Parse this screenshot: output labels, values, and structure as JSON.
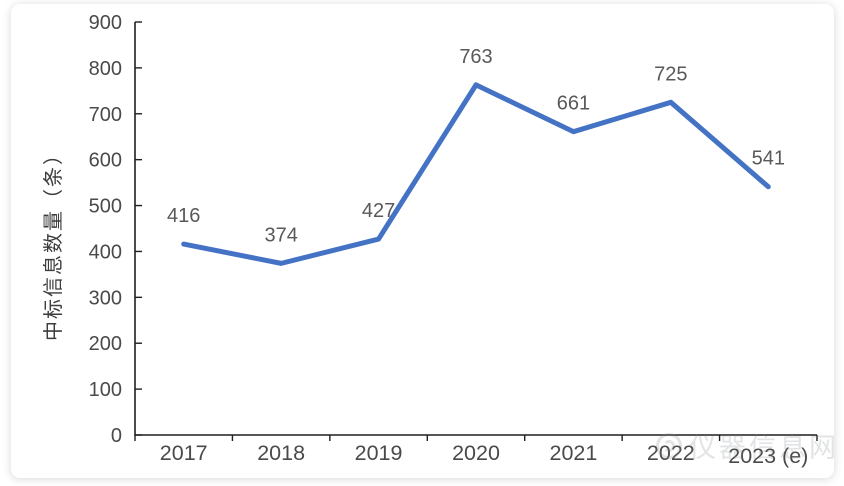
{
  "chart_data": {
    "type": "line",
    "title": "",
    "categories": [
      "2017",
      "2018",
      "2019",
      "2020",
      "2021",
      "2022",
      "2023 (e)"
    ],
    "values": [
      416,
      374,
      427,
      763,
      661,
      725,
      541
    ],
    "xlabel": "",
    "ylabel": "中标信息数量（条）",
    "ylim": [
      0,
      900
    ],
    "ytick_step": 100,
    "grid": false,
    "legend": "none",
    "data_labels_visible": true,
    "colors": {
      "line": "#4472C4",
      "axis": "#1f1f1f",
      "tick_label": "#4a4a4a",
      "data_label": "#595959",
      "ylabel_color": "#3d3d3d"
    }
  },
  "watermark": {
    "text": "仪器信息网",
    "logo": "circle-swirl-logo"
  }
}
